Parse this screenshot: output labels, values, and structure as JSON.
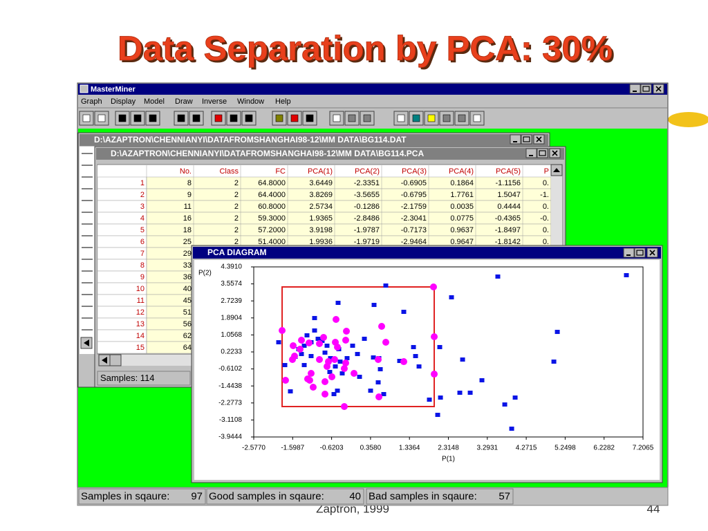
{
  "slide": {
    "title": "Data Separation by PCA: 30%",
    "footer": "Zaptron, 1999",
    "page": "44"
  },
  "app": {
    "title": "MasterMiner",
    "menu": [
      "Graph",
      "Display",
      "Model",
      "Draw",
      "Inverse",
      "Window",
      "Help"
    ]
  },
  "windows": {
    "data": {
      "title": "D:\\AZAPTRON\\CHENNIANYI\\DATAFROMSHANGHAI98-12\\MM DATA\\BG114.DAT"
    },
    "pca": {
      "title": "D:\\AZAPTRON\\CHENNIANYI\\DATAFROMSHANGHAI98-12\\MM DATA\\BG114.PCA",
      "status": "Samples: 114"
    },
    "diagram": {
      "title": "PCA DIAGRAM"
    }
  },
  "table": {
    "columns": [
      "No.",
      "Class",
      "FC",
      "PCA(1)",
      "PCA(2)",
      "PCA(3)",
      "PCA(4)",
      "PCA(5)",
      "P"
    ],
    "rows": [
      [
        "1",
        "8",
        "2",
        "64.8000",
        "3.6449",
        "-2.3351",
        "-0.6905",
        "0.1864",
        "-1.1156",
        "0."
      ],
      [
        "2",
        "9",
        "2",
        "64.4000",
        "3.8269",
        "-3.5655",
        "-0.6795",
        "1.7761",
        "1.5047",
        "-1."
      ],
      [
        "3",
        "11",
        "2",
        "60.8000",
        "2.5734",
        "-0.1286",
        "-2.1759",
        "0.0035",
        "0.4444",
        "0."
      ],
      [
        "4",
        "16",
        "2",
        "59.3000",
        "1.9365",
        "-2.8486",
        "-2.3041",
        "0.0775",
        "-0.4365",
        "-0."
      ],
      [
        "5",
        "18",
        "2",
        "57.2000",
        "3.9198",
        "-1.9787",
        "-0.7173",
        "0.9637",
        "-1.8497",
        "0."
      ],
      [
        "6",
        "25",
        "2",
        "51.4000",
        "1.9936",
        "-1.9719",
        "-2.9464",
        "0.9647",
        "-1.8142",
        "0."
      ],
      [
        "7",
        "29"
      ],
      [
        "8",
        "33"
      ],
      [
        "9",
        "36"
      ],
      [
        "10",
        "40"
      ],
      [
        "11",
        "45"
      ],
      [
        "12",
        "51"
      ],
      [
        "13",
        "56"
      ],
      [
        "14",
        "62"
      ],
      [
        "15",
        "64"
      ]
    ]
  },
  "chart_data": {
    "type": "scatter",
    "xlabel": "P(1)",
    "ylabel": "P(2)",
    "xlim": [
      -2.577,
      7.2065
    ],
    "ylim": [
      -3.9444,
      4.391
    ],
    "xticks": [
      {
        "value": -2.577,
        "label": "-2.5770"
      },
      -1.5987,
      -0.6203,
      {
        "value": 0.358,
        "label": "0.3580"
      },
      1.3364,
      2.3148,
      3.2931,
      4.2715,
      5.2498,
      6.2282,
      7.2065
    ],
    "yticks": [
      {
        "value": 4.391,
        "label": "4.3910"
      },
      3.5574,
      2.7239,
      1.8904,
      1.0568,
      0.2233,
      -0.6102,
      -1.4438,
      -2.2773,
      -3.1108,
      -3.9444
    ],
    "selection": {
      "x": [
        -1.864,
        1.959
      ],
      "y": [
        -2.454,
        3.408
      ],
      "color": "#e02020"
    },
    "series": [
      {
        "color": "#0a14e6",
        "marker": "square",
        "x": [
          0.742,
          3.557,
          6.789,
          -0.457,
          0.447,
          2.393,
          1.194,
          -1.048,
          5.053,
          -1.951,
          -1.795,
          -1.656,
          2.098,
          1.438,
          1.49,
          1.577,
          2.672,
          4.966,
          3.158,
          2.602,
          2.863,
          2.116,
          1.837,
          2.046,
          3.993,
          3.732,
          3.906,
          0.551,
          0.604,
          1.09,
          0.43,
          0.569,
          0.204,
          -0.092,
          0.03,
          -0.405,
          -0.526,
          -0.474,
          -0.561,
          -1.048,
          -1.239,
          -0.961,
          -0.857,
          -1.135,
          -1.308,
          -1.448,
          -0.735,
          -0.787,
          -0.648,
          -1.135,
          -1.378,
          -1.308,
          -0.666,
          -0.353,
          0.082,
          0.36,
          0.69,
          -1.534,
          -0.439,
          -0.231
        ],
        "y": [
          3.476,
          3.917,
          3.984,
          2.629,
          2.527,
          2.9,
          2.188,
          1.883,
          1.205,
          0.697,
          -0.421,
          -1.709,
          0.46,
          0.46,
          0.02,
          -0.489,
          -0.15,
          -0.252,
          -1.166,
          -1.776,
          -1.776,
          -2.014,
          -2.116,
          -2.861,
          -2.014,
          -2.353,
          -3.539,
          -1.268,
          -0.624,
          -0.218,
          -0.048,
          -0.082,
          0.867,
          0.528,
          0.121,
          -0.252,
          -0.489,
          -1.675,
          -1.844,
          1.273,
          1.036,
          0.867,
          0.765,
          0.697,
          0.528,
          0.358,
          0.528,
          0.189,
          -0.082,
          0.02,
          0.121,
          -0.421,
          -0.76,
          -0.828,
          -0.997,
          -1.675,
          -1.844,
          -0.014,
          0.358,
          -0.082
        ]
      },
      {
        "color": "#ff00ff",
        "marker": "circle",
        "x": [
          1.941,
          -1.864,
          -0.248,
          -0.509,
          0.638,
          0.742,
          1.959,
          -1.378,
          -1.586,
          -1.413,
          -1.552,
          -1.604,
          -1.187,
          -0.926,
          -0.822,
          -0.526,
          -0.474,
          -0.266,
          -0.926,
          -0.7,
          -0.735,
          -0.544,
          -0.266,
          -0.301,
          -0.057,
          -0.613,
          -0.787,
          -1.135,
          -1.17,
          -1.083,
          -0.787,
          -1.778,
          0.551,
          1.194,
          0.569,
          -0.301,
          1.959,
          -1.222
        ],
        "y": [
          3.408,
          1.273,
          1.239,
          1.816,
          1.477,
          0.697,
          0.968,
          0.799,
          0.528,
          0.358,
          0.02,
          -0.15,
          0.663,
          0.629,
          0.934,
          0.697,
          0.46,
          0.799,
          -0.15,
          -0.252,
          -0.489,
          -0.15,
          -0.319,
          -0.59,
          -0.828,
          -0.997,
          -1.234,
          -0.828,
          -1.166,
          -1.505,
          -1.844,
          -1.166,
          -0.15,
          -0.252,
          -1.98,
          -2.454,
          -0.862,
          -1.099
        ]
      }
    ]
  },
  "statusbar": [
    {
      "label": "Samples in sqaure:",
      "value": 97
    },
    {
      "label": "Good samples in sqaure:",
      "value": 40
    },
    {
      "label": "Bad samples in sqaure:",
      "value": 57
    }
  ]
}
